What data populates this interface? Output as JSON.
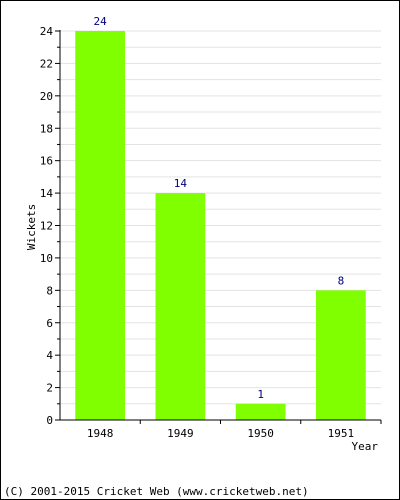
{
  "chart_data": {
    "type": "bar",
    "categories": [
      "1948",
      "1949",
      "1950",
      "1951"
    ],
    "values": [
      24,
      14,
      1,
      8
    ],
    "data_labels": [
      "24",
      "14",
      "1",
      "8"
    ],
    "ylabel": "Wickets",
    "xlabel": "Year",
    "ylim": [
      0,
      24
    ],
    "yticks": [
      0,
      2,
      4,
      6,
      8,
      10,
      12,
      14,
      16,
      18,
      20,
      22,
      24
    ],
    "grid": true,
    "bar_color": "#80ff00",
    "label_color": "#000080"
  },
  "footer": {
    "text": "(C) 2001-2015 Cricket Web (www.cricketweb.net)"
  }
}
